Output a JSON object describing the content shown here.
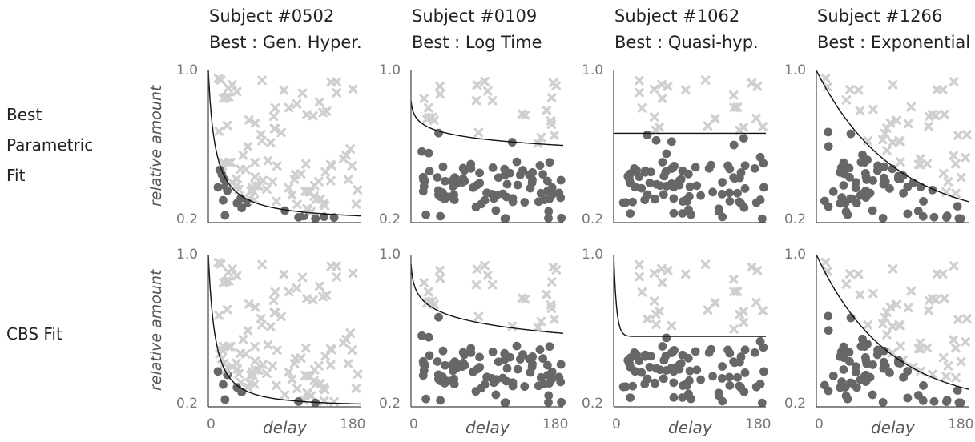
{
  "columns": [
    {
      "title_line1": "Subject #0502",
      "title_line2": "Best : Gen. Hyper."
    },
    {
      "title_line1": "Subject #0109",
      "title_line2": "Best : Log Time"
    },
    {
      "title_line1": "Subject #1062",
      "title_line2": "Best : Quasi-hyp."
    },
    {
      "title_line1": "Subject #1266",
      "title_line2": "Best : Exponential"
    }
  ],
  "rows": [
    {
      "label_lines": [
        "Best",
        "Parametric",
        "Fit"
      ]
    },
    {
      "label_lines": [
        "CBS Fit"
      ]
    }
  ],
  "axis": {
    "ylabel": "relative amount",
    "xlabel": "delay",
    "y_ticks": [
      "1.0",
      "0.2"
    ],
    "x_ticks": [
      "0",
      "180"
    ]
  },
  "colors": {
    "chose_now": "#676767",
    "chose_later": "#cfcfcf",
    "curve": "#111111",
    "axis": "#444444"
  },
  "chart_data": [
    {
      "type": "scatter",
      "subject": "Subject #0502",
      "xlim": [
        0,
        180
      ],
      "ylim": [
        0.2,
        1.0
      ],
      "seed": 11,
      "curves": {
        "parametric": {
          "form": "hyperbolic",
          "k": 0.12,
          "s": 1.0
        },
        "cbs": {
          "form": "hyperbolic",
          "k": 0.09,
          "s": 1.4
        }
      }
    },
    {
      "type": "scatter",
      "subject": "Subject #0109",
      "xlim": [
        0,
        180
      ],
      "ylim": [
        0.2,
        1.0
      ],
      "seed": 23,
      "curves": {
        "parametric": {
          "form": "logtime",
          "a": 0.84,
          "b": 0.045
        },
        "cbs": {
          "form": "logtime",
          "a": 0.95,
          "b": 0.07
        }
      }
    },
    {
      "type": "scatter",
      "subject": "Subject #1062",
      "xlim": [
        0,
        180
      ],
      "ylim": [
        0.2,
        1.0
      ],
      "seed": 37,
      "curves": {
        "parametric": {
          "form": "constant",
          "c": 0.67
        },
        "cbs": {
          "form": "quasi",
          "c": 0.57,
          "k": 0.3
        }
      }
    },
    {
      "type": "scatter",
      "subject": "Subject #1266",
      "xlim": [
        0,
        180
      ],
      "ylim": [
        0.2,
        1.0
      ],
      "seed": 51,
      "curves": {
        "parametric": {
          "form": "exponential",
          "k": 0.011
        },
        "cbs": {
          "form": "exponential",
          "k": 0.012
        }
      }
    }
  ]
}
